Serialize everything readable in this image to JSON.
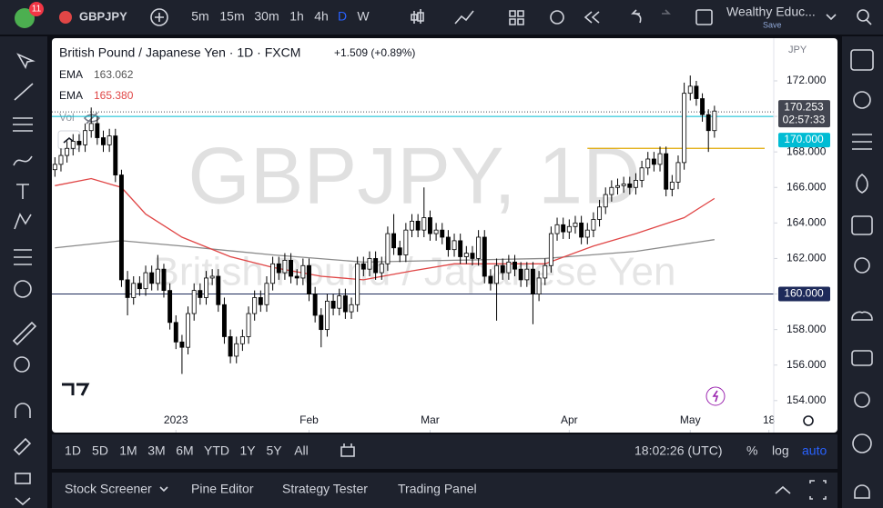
{
  "toolbar": {
    "badge": "11",
    "symbol": "GBPJPY",
    "intervals": [
      "5m",
      "15m",
      "30m",
      "1h",
      "4h",
      "D",
      "W"
    ],
    "active_interval": "D",
    "layout_name": "Wealthy Educ...",
    "save": "Save"
  },
  "chart_data": {
    "type": "candlestick",
    "title": "British Pound / Japanese Yen · 1D · FXCM",
    "change": "+1.509 (+0.89%)",
    "watermark": "GBPJPY, 1D",
    "watermark_subtitle": "British Pound / Japanese Yen",
    "currency": "JPY",
    "volume_label": "Vol",
    "candles": {
      "open": [
        167.0,
        167.3,
        167.8,
        168.2,
        168.6,
        168.4,
        169.2,
        169.6,
        168.8,
        168.4,
        168.9,
        166.7,
        160.8,
        159.8,
        160.6,
        160.3,
        161.2,
        160.6,
        161.4,
        160.2,
        158.4,
        157.3,
        157.0,
        158.9,
        160.2,
        159.8,
        160.9,
        161.0,
        159.4,
        157.6,
        156.5,
        157.2,
        157.6,
        158.9,
        159.8,
        159.4,
        160.6,
        161.7,
        161.2,
        161.9,
        161.0,
        160.9,
        161.6,
        160.0,
        158.8,
        158.0,
        159.6,
        159.2,
        159.9,
        159.0,
        159.4,
        161.7,
        161.4,
        162.0,
        161.2,
        161.7,
        163.4,
        162.6,
        162.2,
        163.6,
        164.1,
        163.6,
        164.3,
        163.4,
        163.6,
        163.2,
        162.5,
        163.0,
        162.1,
        162.3,
        162.0,
        163.2,
        161.0,
        160.6,
        161.6,
        161.2,
        161.8,
        161.4,
        160.8,
        161.4,
        160.0,
        160.9,
        161.6,
        163.4,
        163.9,
        163.5,
        163.8,
        164.0,
        163.2,
        163.6,
        164.2,
        164.9,
        165.6,
        166.0,
        166.1,
        166.2,
        166.0,
        166.4,
        167.1,
        167.6,
        167.3,
        167.9,
        165.9,
        166.3,
        167.4,
        171.3,
        171.7,
        171.0,
        170.1,
        169.2
      ],
      "high": [
        167.7,
        168.2,
        168.6,
        169.0,
        169.0,
        169.6,
        170.5,
        170.0,
        169.2,
        169.3,
        169.3,
        167.0,
        161.3,
        161.0,
        161.0,
        161.6,
        161.6,
        162.2,
        161.7,
        160.6,
        158.8,
        157.7,
        159.3,
        160.6,
        160.6,
        161.3,
        161.4,
        161.4,
        159.8,
        158.0,
        157.6,
        158.0,
        159.3,
        160.2,
        160.2,
        161.0,
        162.1,
        162.1,
        162.3,
        162.3,
        161.4,
        162.0,
        162.0,
        160.4,
        159.2,
        160.0,
        160.0,
        160.3,
        160.3,
        159.8,
        162.1,
        162.1,
        162.4,
        162.4,
        162.1,
        163.8,
        164.5,
        163.0,
        164.0,
        164.5,
        164.5,
        166.0,
        164.7,
        164.0,
        164.0,
        163.6,
        163.4,
        163.4,
        162.7,
        162.7,
        163.6,
        163.6,
        161.4,
        162.0,
        162.0,
        162.2,
        162.2,
        161.8,
        161.8,
        161.8,
        161.3,
        162.0,
        163.8,
        164.3,
        164.3,
        164.2,
        164.4,
        164.4,
        164.0,
        164.6,
        165.3,
        166.0,
        166.4,
        166.5,
        166.6,
        166.6,
        166.8,
        167.5,
        168.0,
        168.0,
        168.3,
        168.3,
        166.7,
        167.8,
        171.9,
        172.3,
        172.0,
        171.3,
        170.4,
        170.6
      ],
      "low": [
        166.6,
        166.9,
        167.4,
        167.8,
        168.0,
        168.0,
        168.8,
        168.4,
        168.0,
        168.0,
        166.3,
        160.4,
        158.8,
        159.4,
        159.9,
        159.9,
        160.2,
        160.2,
        159.8,
        158.0,
        156.9,
        155.5,
        156.6,
        158.5,
        159.4,
        159.4,
        160.5,
        159.0,
        157.2,
        156.1,
        156.1,
        156.8,
        157.2,
        158.5,
        159.0,
        159.0,
        160.2,
        160.8,
        160.8,
        160.6,
        160.5,
        160.5,
        159.6,
        158.4,
        157.0,
        157.6,
        158.8,
        158.8,
        158.6,
        158.6,
        159.0,
        161.0,
        161.0,
        160.8,
        160.8,
        161.3,
        162.2,
        161.8,
        161.8,
        163.2,
        163.2,
        163.2,
        163.0,
        163.0,
        162.8,
        162.1,
        162.1,
        161.7,
        161.7,
        161.6,
        161.6,
        160.6,
        160.2,
        158.5,
        160.8,
        160.8,
        161.0,
        160.4,
        160.4,
        158.3,
        159.6,
        160.5,
        161.2,
        163.0,
        163.1,
        163.1,
        163.4,
        162.8,
        162.8,
        163.2,
        163.8,
        164.5,
        165.2,
        165.6,
        165.7,
        165.6,
        165.6,
        166.0,
        166.7,
        166.9,
        166.9,
        165.5,
        165.5,
        165.9,
        167.0,
        170.9,
        170.6,
        169.7,
        168.0,
        168.8
      ],
      "close": [
        167.3,
        167.8,
        168.2,
        168.6,
        168.4,
        169.2,
        169.6,
        168.8,
        168.4,
        168.9,
        166.7,
        160.8,
        159.8,
        160.6,
        160.3,
        161.2,
        160.6,
        161.4,
        160.2,
        158.4,
        157.3,
        157.0,
        158.9,
        160.2,
        159.8,
        160.9,
        161.0,
        159.4,
        157.6,
        156.5,
        157.2,
        157.6,
        158.9,
        159.8,
        159.4,
        160.6,
        161.7,
        161.2,
        161.9,
        161.0,
        160.9,
        161.6,
        160.0,
        158.8,
        158.0,
        159.6,
        159.2,
        159.9,
        159.0,
        159.4,
        161.7,
        161.4,
        162.0,
        161.2,
        161.7,
        163.4,
        162.6,
        162.2,
        163.6,
        164.1,
        163.6,
        164.3,
        163.4,
        163.6,
        163.2,
        162.5,
        163.0,
        162.1,
        162.3,
        162.0,
        163.2,
        161.0,
        160.6,
        161.6,
        161.2,
        161.8,
        161.4,
        160.8,
        161.4,
        160.0,
        160.9,
        161.6,
        163.4,
        163.9,
        163.5,
        163.8,
        164.0,
        163.2,
        163.6,
        164.2,
        164.9,
        165.6,
        166.0,
        166.1,
        166.2,
        166.0,
        166.4,
        167.1,
        167.6,
        167.3,
        167.9,
        165.9,
        166.3,
        167.4,
        171.3,
        171.7,
        171.0,
        170.1,
        169.2,
        170.3
      ]
    },
    "up_color": "#ffffff",
    "down_color": "#000000",
    "outline_color": "#000000",
    "series": [
      {
        "name": "EMA",
        "value_label": "163.062",
        "color": "#8a8a8a",
        "x": [
          0,
          11,
          21,
          36,
          51,
          66,
          81,
          96,
          109
        ],
        "values": [
          162.6,
          163.0,
          162.7,
          162.2,
          161.8,
          161.9,
          162.0,
          162.4,
          163.062
        ]
      },
      {
        "name": "EMA",
        "value_label": "165.380",
        "color": "#e04646",
        "x": [
          0,
          6,
          11,
          15,
          21,
          29,
          36,
          44,
          51,
          59,
          66,
          74,
          81,
          89,
          96,
          104,
          109
        ],
        "values": [
          166.1,
          166.5,
          166.0,
          164.5,
          163.2,
          162.1,
          161.5,
          161.0,
          160.8,
          161.3,
          161.7,
          161.7,
          161.7,
          162.7,
          163.4,
          164.3,
          165.38
        ]
      }
    ],
    "price_lines": [
      {
        "value": 170.253,
        "label": "170.253",
        "countdown": "02:57:33",
        "color": "#434651",
        "style": "dotted"
      },
      {
        "value": 170.0,
        "label": "170.000",
        "color": "#00bcd4",
        "style": "solid"
      },
      {
        "value": 160.0,
        "label": "160.000",
        "color": "#1e2a5a",
        "style": "solid"
      }
    ],
    "trend_line": {
      "value": 168.2,
      "start": 88,
      "color": "#e0a800"
    },
    "xlim": [
      -0.5,
      118.8
    ],
    "ylim": [
      152.2,
      174.25
    ],
    "xticks": [
      {
        "value": 20,
        "label": "2023"
      },
      {
        "value": 42,
        "label": "Feb"
      },
      {
        "value": 62,
        "label": "Mar"
      },
      {
        "value": 85,
        "label": "Apr"
      },
      {
        "value": 105,
        "label": "May"
      },
      {
        "value": 118,
        "label": "18"
      }
    ],
    "yticks": [
      {
        "value": 172,
        "label": "172.000"
      },
      {
        "value": 170,
        "label": "170.000"
      },
      {
        "value": 168,
        "label": "168.000"
      },
      {
        "value": 166,
        "label": "166.000"
      },
      {
        "value": 164,
        "label": "164.000"
      },
      {
        "value": 162,
        "label": "162.000"
      },
      {
        "value": 160,
        "label": "160.000"
      },
      {
        "value": 158,
        "label": "158.000"
      },
      {
        "value": 156,
        "label": "156.000"
      },
      {
        "value": 154,
        "label": "154.000"
      }
    ],
    "grid": false,
    "log_scale": false
  },
  "range_bar": {
    "ranges": [
      "1D",
      "5D",
      "1M",
      "3M",
      "6M",
      "YTD",
      "1Y",
      "5Y",
      "All"
    ],
    "clock": "18:02:26 (UTC)",
    "percent": "%",
    "log": "log",
    "auto": "auto"
  },
  "bottom_panel": {
    "tabs": [
      "Stock Screener",
      "Pine Editor",
      "Strategy Tester",
      "Trading Panel"
    ]
  }
}
